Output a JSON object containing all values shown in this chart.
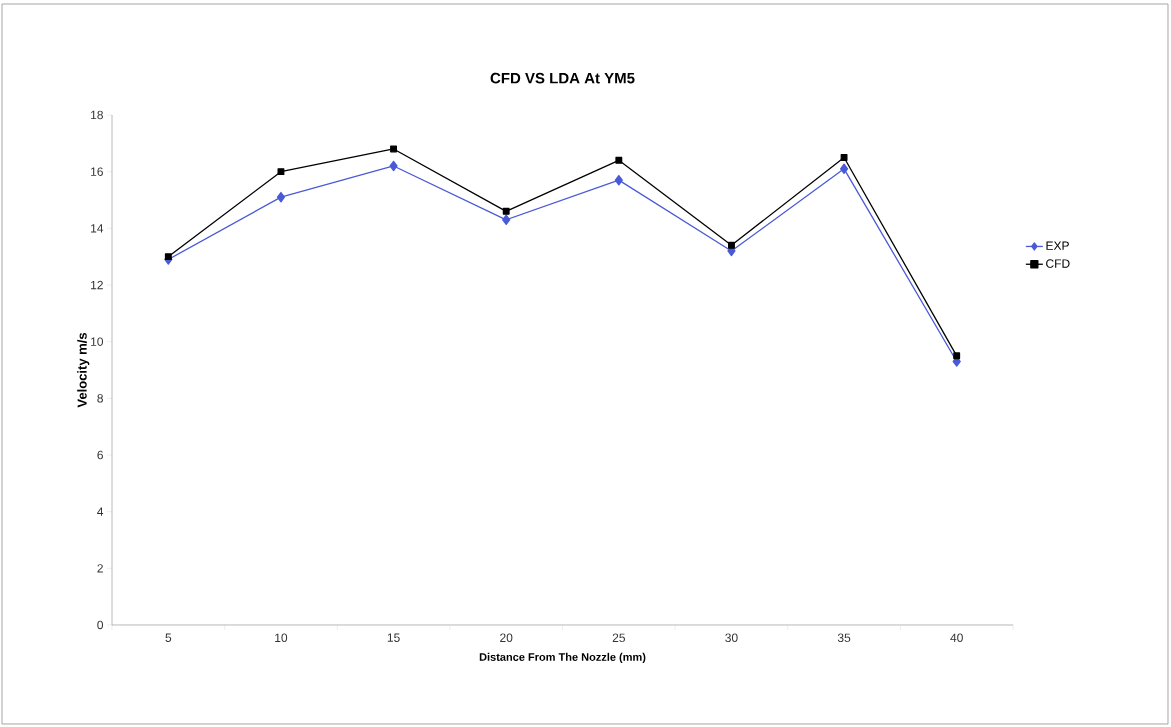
{
  "chart_data": {
    "type": "line",
    "title": "CFD VS LDA At YM5",
    "xlabel": "Distance From The Nozzle (mm)",
    "ylabel": "Velocity m/s",
    "categories": [
      "5",
      "10",
      "15",
      "20",
      "25",
      "30",
      "35",
      "40"
    ],
    "series": [
      {
        "name": "EXP",
        "color": "#4a5ad6",
        "marker": "diamond",
        "values": [
          12.9,
          15.1,
          16.2,
          14.3,
          15.7,
          13.2,
          16.1,
          9.3
        ]
      },
      {
        "name": "CFD",
        "color": "#000000",
        "marker": "square",
        "values": [
          13.0,
          16.0,
          16.8,
          14.6,
          16.4,
          13.4,
          16.5,
          9.5
        ]
      }
    ],
    "ylim": [
      0,
      18
    ],
    "yticks": [
      0,
      2,
      4,
      6,
      8,
      10,
      12,
      14,
      16,
      18
    ],
    "grid": false,
    "legend": "right",
    "line_style": "solid"
  }
}
